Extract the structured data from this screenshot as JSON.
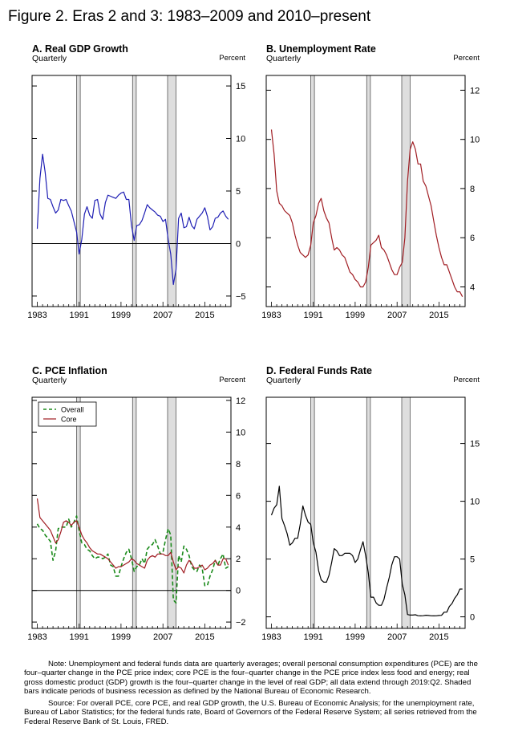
{
  "figure_title": "Figure 2. Eras 2 and 3: 1983–2009 and 2010–present",
  "colors": {
    "gdp": "#1f1fb4",
    "unemployment": "#a01c22",
    "pce_overall": "#1a8a1a",
    "pce_core": "#a01c22",
    "ffr": "#000000",
    "recession": "#dedede"
  },
  "panels": [
    {
      "id": "A",
      "title": "A. Real GDP Growth",
      "frequency": "Quarterly",
      "unit": "Percent"
    },
    {
      "id": "B",
      "title": "B. Unemployment Rate",
      "frequency": "Quarterly",
      "unit": "Percent"
    },
    {
      "id": "C",
      "title": "C. PCE Inflation",
      "frequency": "Quarterly",
      "unit": "Percent"
    },
    {
      "id": "D",
      "title": "D. Federal Funds Rate",
      "frequency": "Quarterly",
      "unit": "Percent"
    }
  ],
  "recessions": [
    [
      1990.5,
      1991.2
    ],
    [
      2001.2,
      2001.9
    ],
    [
      2007.9,
      2009.5
    ]
  ],
  "chart_data": [
    {
      "panel": "A",
      "type": "line",
      "x_ticks": [
        "1983",
        "1991",
        "1999",
        "2007",
        "2015"
      ],
      "xlim": [
        1982,
        2020
      ],
      "ylim": [
        -6,
        16
      ],
      "y_ticks": [
        -5,
        0,
        5,
        10,
        15
      ],
      "zero_line": true,
      "series": [
        {
          "color_key": "gdp",
          "x": [
            1983,
            1983.5,
            1984,
            1984.5,
            1985,
            1985.5,
            1986,
            1986.5,
            1987,
            1987.5,
            1988,
            1988.5,
            1989,
            1989.5,
            1990,
            1990.5,
            1991,
            1991.5,
            1992,
            1992.5,
            1993,
            1993.5,
            1994,
            1994.5,
            1995,
            1995.5,
            1996,
            1996.5,
            1997,
            1997.5,
            1998,
            1998.5,
            1999,
            1999.5,
            2000,
            2000.5,
            2001,
            2001.5,
            2002,
            2002.5,
            2003,
            2003.5,
            2004,
            2004.5,
            2005,
            2005.5,
            2006,
            2006.5,
            2007,
            2007.5,
            2008,
            2008.5,
            2009,
            2009.5,
            2010,
            2010.5,
            2011,
            2011.5,
            2012,
            2012.5,
            2013,
            2013.5,
            2014,
            2014.5,
            2015,
            2015.5,
            2016,
            2016.5,
            2017,
            2017.5,
            2018,
            2018.5,
            2019,
            2019.5
          ],
          "values": [
            1.4,
            6.2,
            8.5,
            6.8,
            4.3,
            4.2,
            3.5,
            2.9,
            3.2,
            4.2,
            4.1,
            4.2,
            3.6,
            3.1,
            2.1,
            1.1,
            -1.0,
            0.4,
            2.8,
            3.5,
            2.7,
            2.4,
            4.1,
            4.2,
            2.8,
            2.3,
            3.9,
            4.6,
            4.5,
            4.4,
            4.3,
            4.6,
            4.8,
            4.9,
            4.2,
            4.2,
            1.7,
            0.3,
            1.7,
            1.8,
            2.2,
            2.9,
            3.7,
            3.4,
            3.2,
            3.0,
            2.7,
            2.6,
            2.1,
            2.3,
            0.4,
            -1.0,
            -3.9,
            -2.5,
            2.4,
            2.9,
            1.5,
            1.6,
            2.5,
            1.7,
            1.4,
            2.3,
            2.6,
            2.9,
            3.4,
            2.6,
            1.3,
            1.6,
            2.4,
            2.5,
            2.9,
            3.1,
            2.6,
            2.3
          ]
        }
      ]
    },
    {
      "panel": "B",
      "type": "line",
      "x_ticks": [
        "1983",
        "1991",
        "1999",
        "2007",
        "2015"
      ],
      "xlim": [
        1982,
        2020
      ],
      "ylim": [
        3.2,
        12.6
      ],
      "y_ticks": [
        4,
        6,
        8,
        10,
        12
      ],
      "zero_line": false,
      "series": [
        {
          "color_key": "unemployment",
          "x": [
            1983,
            1983.5,
            1984,
            1984.5,
            1985,
            1985.5,
            1986,
            1986.5,
            1987,
            1987.5,
            1988,
            1988.5,
            1989,
            1989.5,
            1990,
            1990.5,
            1991,
            1991.5,
            1992,
            1992.5,
            1993,
            1993.5,
            1994,
            1994.5,
            1995,
            1995.5,
            1996,
            1996.5,
            1997,
            1997.5,
            1998,
            1998.5,
            1999,
            1999.5,
            2000,
            2000.5,
            2001,
            2001.5,
            2002,
            2002.5,
            2003,
            2003.5,
            2004,
            2004.5,
            2005,
            2005.5,
            2006,
            2006.5,
            2007,
            2007.5,
            2008,
            2008.5,
            2009,
            2009.5,
            2010,
            2010.5,
            2011,
            2011.5,
            2012,
            2012.5,
            2013,
            2013.5,
            2014,
            2014.5,
            2015,
            2015.5,
            2016,
            2016.5,
            2017,
            2017.5,
            2018,
            2018.5,
            2019,
            2019.5
          ],
          "values": [
            10.4,
            9.4,
            7.9,
            7.4,
            7.3,
            7.1,
            7.0,
            6.9,
            6.6,
            6.1,
            5.7,
            5.4,
            5.3,
            5.2,
            5.3,
            5.7,
            6.6,
            6.9,
            7.4,
            7.6,
            7.1,
            6.8,
            6.6,
            6.0,
            5.5,
            5.6,
            5.5,
            5.3,
            5.2,
            4.9,
            4.6,
            4.5,
            4.3,
            4.2,
            4.0,
            4.0,
            4.2,
            4.8,
            5.7,
            5.8,
            5.9,
            6.1,
            5.6,
            5.5,
            5.3,
            5.0,
            4.7,
            4.5,
            4.5,
            4.8,
            5.0,
            6.0,
            8.3,
            9.6,
            9.9,
            9.6,
            9.0,
            9.0,
            8.3,
            8.1,
            7.7,
            7.3,
            6.7,
            6.1,
            5.6,
            5.2,
            4.9,
            4.9,
            4.6,
            4.3,
            4.0,
            3.8,
            3.8,
            3.6
          ]
        }
      ]
    },
    {
      "panel": "C",
      "type": "line",
      "x_ticks": [
        "1983",
        "1991",
        "1999",
        "2007",
        "2015"
      ],
      "xlim": [
        1982,
        2020
      ],
      "ylim": [
        -2.4,
        12.2
      ],
      "y_ticks": [
        -2,
        0,
        2,
        4,
        6,
        8,
        10,
        12
      ],
      "zero_line": true,
      "legend": {
        "position": "top-left"
      },
      "series": [
        {
          "name": "Overall",
          "color_key": "pce_overall",
          "dashed": true,
          "x": [
            1983,
            1983.5,
            1984,
            1984.5,
            1985,
            1985.5,
            1986,
            1986.5,
            1987,
            1987.5,
            1988,
            1988.5,
            1989,
            1989.5,
            1990,
            1990.5,
            1991,
            1991.5,
            1992,
            1992.5,
            1993,
            1993.5,
            1994,
            1994.5,
            1995,
            1995.5,
            1996,
            1996.5,
            1997,
            1997.5,
            1998,
            1998.5,
            1999,
            1999.5,
            2000,
            2000.5,
            2001,
            2001.5,
            2002,
            2002.5,
            2003,
            2003.5,
            2004,
            2004.5,
            2005,
            2005.5,
            2006,
            2006.5,
            2007,
            2007.5,
            2008,
            2008.5,
            2009,
            2009.5,
            2010,
            2010.5,
            2011,
            2011.5,
            2012,
            2012.5,
            2013,
            2013.5,
            2014,
            2014.5,
            2015,
            2015.5,
            2016,
            2016.5,
            2017,
            2017.5,
            2018,
            2018.5,
            2019,
            2019.5
          ],
          "values": [
            4.2,
            3.9,
            3.8,
            3.5,
            3.3,
            3.1,
            1.9,
            2.5,
            3.9,
            4.0,
            4.0,
            4.0,
            4.5,
            4.0,
            4.3,
            4.7,
            3.8,
            3.0,
            2.9,
            2.6,
            2.5,
            2.2,
            2.0,
            2.1,
            2.1,
            2.0,
            2.1,
            2.3,
            1.6,
            1.5,
            0.9,
            0.9,
            1.5,
            2.0,
            2.4,
            2.6,
            2.0,
            1.2,
            1.5,
            1.6,
            2.0,
            1.7,
            2.6,
            2.8,
            2.9,
            3.2,
            2.8,
            2.3,
            2.4,
            3.2,
            3.9,
            3.5,
            -0.6,
            -0.8,
            2.2,
            1.8,
            2.8,
            2.6,
            2.2,
            1.5,
            1.3,
            1.2,
            1.6,
            1.4,
            0.3,
            0.3,
            0.9,
            1.3,
            1.9,
            1.6,
            2.0,
            2.3,
            1.4,
            1.5
          ]
        },
        {
          "name": "Core",
          "color_key": "pce_core",
          "dashed": false,
          "x": [
            1983,
            1983.5,
            1984,
            1984.5,
            1985,
            1985.5,
            1986,
            1986.5,
            1987,
            1987.5,
            1988,
            1988.5,
            1989,
            1989.5,
            1990,
            1990.5,
            1991,
            1991.5,
            1992,
            1992.5,
            1993,
            1993.5,
            1994,
            1994.5,
            1995,
            1995.5,
            1996,
            1996.5,
            1997,
            1997.5,
            1998,
            1998.5,
            1999,
            1999.5,
            2000,
            2000.5,
            2001,
            2001.5,
            2002,
            2002.5,
            2003,
            2003.5,
            2004,
            2004.5,
            2005,
            2005.5,
            2006,
            2006.5,
            2007,
            2007.5,
            2008,
            2008.5,
            2009,
            2009.5,
            2010,
            2010.5,
            2011,
            2011.5,
            2012,
            2012.5,
            2013,
            2013.5,
            2014,
            2014.5,
            2015,
            2015.5,
            2016,
            2016.5,
            2017,
            2017.5,
            2018,
            2018.5,
            2019,
            2019.5
          ],
          "values": [
            5.8,
            4.6,
            4.4,
            4.2,
            4.0,
            3.8,
            3.4,
            3.0,
            3.2,
            3.7,
            4.3,
            4.4,
            4.3,
            4.1,
            4.3,
            4.4,
            4.0,
            3.5,
            3.2,
            3.0,
            2.7,
            2.5,
            2.4,
            2.3,
            2.3,
            2.2,
            2.1,
            2.0,
            1.8,
            1.6,
            1.4,
            1.5,
            1.5,
            1.6,
            1.7,
            1.8,
            2.0,
            1.9,
            1.7,
            1.6,
            1.5,
            1.4,
            1.9,
            2.1,
            2.2,
            2.1,
            2.3,
            2.3,
            2.3,
            2.2,
            2.2,
            2.4,
            1.8,
            1.3,
            1.5,
            1.4,
            1.1,
            1.6,
            1.9,
            1.7,
            1.4,
            1.4,
            1.5,
            1.6,
            1.3,
            1.4,
            1.6,
            1.7,
            1.9,
            1.6,
            1.6,
            2.0,
            2.0,
            1.6
          ]
        }
      ]
    },
    {
      "panel": "D",
      "type": "line",
      "x_ticks": [
        "1983",
        "1991",
        "1999",
        "2007",
        "2015"
      ],
      "xlim": [
        1982,
        2020
      ],
      "ylim": [
        -1,
        19
      ],
      "y_ticks": [
        0,
        5,
        10,
        15
      ],
      "zero_line": false,
      "series": [
        {
          "color_key": "ffr",
          "x": [
            1983,
            1983.5,
            1984,
            1984.5,
            1985,
            1985.5,
            1986,
            1986.5,
            1987,
            1987.5,
            1988,
            1988.5,
            1989,
            1989.5,
            1990,
            1990.5,
            1991,
            1991.5,
            1992,
            1992.5,
            1993,
            1993.5,
            1994,
            1994.5,
            1995,
            1995.5,
            1996,
            1996.5,
            1997,
            1997.5,
            1998,
            1998.5,
            1999,
            1999.5,
            2000,
            2000.5,
            2001,
            2001.5,
            2002,
            2002.5,
            2003,
            2003.5,
            2004,
            2004.5,
            2005,
            2005.5,
            2006,
            2006.5,
            2007,
            2007.5,
            2008,
            2008.5,
            2009,
            2009.5,
            2010,
            2010.5,
            2011,
            2011.5,
            2012,
            2012.5,
            2013,
            2013.5,
            2014,
            2014.5,
            2015,
            2015.5,
            2016,
            2016.5,
            2017,
            2017.5,
            2018,
            2018.5,
            2019,
            2019.5
          ],
          "values": [
            8.8,
            9.4,
            9.7,
            11.3,
            8.5,
            7.9,
            7.2,
            6.2,
            6.4,
            6.8,
            6.8,
            8.0,
            9.6,
            8.8,
            8.2,
            8.0,
            6.4,
            5.6,
            4.0,
            3.2,
            3.0,
            3.0,
            3.6,
            4.7,
            5.9,
            5.7,
            5.3,
            5.3,
            5.5,
            5.5,
            5.5,
            5.3,
            4.7,
            5.0,
            5.8,
            6.5,
            5.3,
            3.8,
            1.7,
            1.7,
            1.2,
            1.0,
            1.0,
            1.5,
            2.5,
            3.4,
            4.5,
            5.2,
            5.2,
            5.0,
            2.8,
            1.9,
            0.2,
            0.15,
            0.15,
            0.18,
            0.1,
            0.08,
            0.1,
            0.14,
            0.12,
            0.09,
            0.08,
            0.09,
            0.12,
            0.13,
            0.4,
            0.4,
            0.9,
            1.15,
            1.6,
            1.9,
            2.4,
            2.4
          ]
        }
      ]
    }
  ],
  "notes": {
    "note": "Note:  Unemployment and federal funds data are quarterly averages; overall personal consumption expenditures (PCE) are the four–quarter change in the PCE price index; core PCE is the four–quarter change in the PCE price index less food and energy; real gross domestic product (GDP) growth is the four–quarter change in the level of real GDP; all data extend through 2019:Q2.  Shaded bars indicate periods of business recession as defined by the National Bureau of Economic Research.",
    "source": "Source:  For overall PCE, core PCE, and real GDP growth, the U.S. Bureau of Economic Analysis; for the unemployment rate, Bureau of Labor Statistics; for the federal funds rate, Board of Governors of the Federal Reserve System; all series retrieved from the Federal Reserve Bank of St. Louis, FRED."
  }
}
